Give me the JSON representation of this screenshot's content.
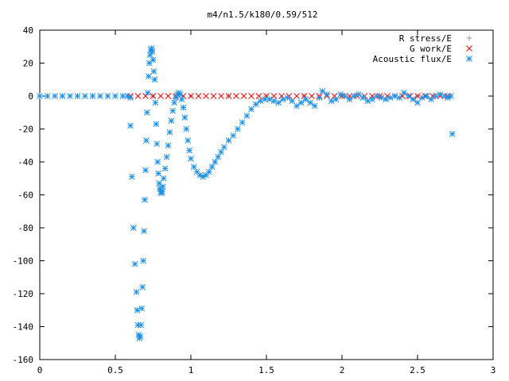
{
  "chart_data": {
    "type": "scatter",
    "title": "m4/n1.5/k180/0.59/512",
    "xlabel": "",
    "ylabel": "",
    "xlim": [
      0,
      3
    ],
    "ylim": [
      -160,
      40
    ],
    "xticks": [
      0,
      0.5,
      1,
      1.5,
      2,
      2.5,
      3
    ],
    "xtick_labels": [
      "0",
      "0.5",
      "1",
      "1.5",
      "2",
      "2.5",
      "3"
    ],
    "yticks": [
      -160,
      -140,
      -120,
      -100,
      -80,
      -60,
      -40,
      -20,
      0,
      20,
      40
    ],
    "ytick_labels": [
      "-160",
      "-140",
      "-120",
      "-100",
      "-80",
      "-60",
      "-40",
      "-20",
      "0",
      "20",
      "40"
    ],
    "grid": false,
    "legend_position": "top-right",
    "series": [
      {
        "name": "R stress/E",
        "marker": "plus",
        "color": "#a0a0a0",
        "points": [
          [
            0.0,
            0
          ],
          [
            0.25,
            0
          ],
          [
            0.5,
            0
          ],
          [
            0.75,
            0
          ],
          [
            1.0,
            0
          ],
          [
            1.25,
            0
          ],
          [
            1.5,
            0
          ],
          [
            1.75,
            0
          ],
          [
            2.0,
            0
          ],
          [
            2.25,
            0
          ],
          [
            2.5,
            0
          ],
          [
            2.72,
            0
          ]
        ]
      },
      {
        "name": "G work/E",
        "marker": "cross",
        "color": "#ff0000",
        "points": [
          [
            0.6,
            0
          ],
          [
            0.65,
            0
          ],
          [
            0.7,
            0
          ],
          [
            0.75,
            0
          ],
          [
            0.8,
            0
          ],
          [
            0.85,
            0
          ],
          [
            0.9,
            0
          ],
          [
            0.95,
            0
          ],
          [
            1.0,
            0
          ],
          [
            1.05,
            0
          ],
          [
            1.1,
            0
          ],
          [
            1.15,
            0
          ],
          [
            1.2,
            0
          ],
          [
            1.25,
            0
          ],
          [
            1.3,
            0
          ],
          [
            1.35,
            0
          ],
          [
            1.4,
            0
          ],
          [
            1.45,
            0
          ],
          [
            1.5,
            0
          ],
          [
            1.55,
            0
          ],
          [
            1.6,
            0
          ],
          [
            1.65,
            0
          ],
          [
            1.7,
            0
          ],
          [
            1.75,
            0
          ],
          [
            1.8,
            0
          ],
          [
            1.85,
            0
          ],
          [
            1.9,
            0
          ],
          [
            1.95,
            0
          ],
          [
            2.0,
            0
          ],
          [
            2.05,
            0
          ],
          [
            2.1,
            0
          ],
          [
            2.15,
            0
          ],
          [
            2.2,
            0
          ],
          [
            2.25,
            0
          ],
          [
            2.3,
            0
          ],
          [
            2.35,
            0
          ],
          [
            2.4,
            0
          ],
          [
            2.45,
            0
          ],
          [
            2.5,
            0
          ],
          [
            2.55,
            0
          ],
          [
            2.6,
            0
          ],
          [
            2.65,
            0
          ],
          [
            2.7,
            0
          ]
        ]
      },
      {
        "name": "Acoustic flux/E",
        "marker": "star",
        "color": "#1e90e6",
        "points": [
          [
            0.0,
            0
          ],
          [
            0.05,
            0
          ],
          [
            0.1,
            0
          ],
          [
            0.15,
            0
          ],
          [
            0.2,
            0
          ],
          [
            0.25,
            0
          ],
          [
            0.3,
            0
          ],
          [
            0.35,
            0
          ],
          [
            0.4,
            0
          ],
          [
            0.45,
            0
          ],
          [
            0.5,
            0
          ],
          [
            0.55,
            0
          ],
          [
            0.58,
            0
          ],
          [
            0.6,
            -1
          ],
          [
            0.6,
            -18
          ],
          [
            0.61,
            -49
          ],
          [
            0.62,
            -80
          ],
          [
            0.63,
            -102
          ],
          [
            0.64,
            -119
          ],
          [
            0.645,
            -130
          ],
          [
            0.65,
            -139
          ],
          [
            0.655,
            -145
          ],
          [
            0.66,
            -147
          ],
          [
            0.665,
            -146
          ],
          [
            0.67,
            -139
          ],
          [
            0.675,
            -129
          ],
          [
            0.68,
            -116
          ],
          [
            0.685,
            -100
          ],
          [
            0.69,
            -82
          ],
          [
            0.695,
            -63
          ],
          [
            0.7,
            -45
          ],
          [
            0.705,
            -27
          ],
          [
            0.71,
            -10
          ],
          [
            0.715,
            2
          ],
          [
            0.72,
            12
          ],
          [
            0.725,
            20
          ],
          [
            0.73,
            25
          ],
          [
            0.735,
            28
          ],
          [
            0.74,
            29
          ],
          [
            0.745,
            27
          ],
          [
            0.75,
            22
          ],
          [
            0.755,
            15
          ],
          [
            0.76,
            10
          ],
          [
            0.765,
            -4
          ],
          [
            0.77,
            -17
          ],
          [
            0.775,
            -29
          ],
          [
            0.78,
            -40
          ],
          [
            0.785,
            -47
          ],
          [
            0.79,
            -53
          ],
          [
            0.795,
            -56
          ],
          [
            0.8,
            -58
          ],
          [
            0.805,
            -59
          ],
          [
            0.81,
            -58
          ],
          [
            0.815,
            -55
          ],
          [
            0.82,
            -50
          ],
          [
            0.83,
            -44
          ],
          [
            0.84,
            -37
          ],
          [
            0.85,
            -30
          ],
          [
            0.86,
            -22
          ],
          [
            0.87,
            -15
          ],
          [
            0.88,
            -9
          ],
          [
            0.89,
            -4
          ],
          [
            0.9,
            -1
          ],
          [
            0.91,
            1
          ],
          [
            0.92,
            2
          ],
          [
            0.93,
            1
          ],
          [
            0.94,
            -2
          ],
          [
            0.95,
            -7
          ],
          [
            0.96,
            -13
          ],
          [
            0.97,
            -20
          ],
          [
            0.98,
            -27
          ],
          [
            0.99,
            -33
          ],
          [
            1.0,
            -38
          ],
          [
            1.02,
            -43
          ],
          [
            1.04,
            -46
          ],
          [
            1.06,
            -48
          ],
          [
            1.08,
            -49
          ],
          [
            1.1,
            -48
          ],
          [
            1.12,
            -46
          ],
          [
            1.14,
            -43
          ],
          [
            1.16,
            -40
          ],
          [
            1.18,
            -37
          ],
          [
            1.2,
            -34
          ],
          [
            1.22,
            -31
          ],
          [
            1.25,
            -27
          ],
          [
            1.28,
            -24
          ],
          [
            1.31,
            -20
          ],
          [
            1.34,
            -16
          ],
          [
            1.37,
            -12
          ],
          [
            1.4,
            -8
          ],
          [
            1.43,
            -5
          ],
          [
            1.46,
            -3
          ],
          [
            1.49,
            -2
          ],
          [
            1.52,
            -2
          ],
          [
            1.55,
            -3
          ],
          [
            1.58,
            -4
          ],
          [
            1.61,
            -2
          ],
          [
            1.64,
            -1
          ],
          [
            1.67,
            -3
          ],
          [
            1.7,
            -6
          ],
          [
            1.73,
            -4
          ],
          [
            1.76,
            -2
          ],
          [
            1.79,
            -4
          ],
          [
            1.82,
            -6
          ],
          [
            1.85,
            -1
          ],
          [
            1.87,
            3
          ],
          [
            1.9,
            1
          ],
          [
            1.93,
            -3
          ],
          [
            1.96,
            -2
          ],
          [
            1.99,
            1
          ],
          [
            2.02,
            0
          ],
          [
            2.05,
            -2
          ],
          [
            2.08,
            0
          ],
          [
            2.11,
            1
          ],
          [
            2.14,
            -1
          ],
          [
            2.17,
            -3
          ],
          [
            2.2,
            -2
          ],
          [
            2.23,
            0
          ],
          [
            2.26,
            -1
          ],
          [
            2.29,
            -2
          ],
          [
            2.32,
            -1
          ],
          [
            2.35,
            0
          ],
          [
            2.38,
            -1
          ],
          [
            2.41,
            2
          ],
          [
            2.44,
            0
          ],
          [
            2.47,
            -2
          ],
          [
            2.5,
            -4
          ],
          [
            2.53,
            -1
          ],
          [
            2.56,
            0
          ],
          [
            2.59,
            -2
          ],
          [
            2.62,
            0
          ],
          [
            2.65,
            1
          ],
          [
            2.68,
            0
          ],
          [
            2.7,
            -1
          ],
          [
            2.72,
            0
          ],
          [
            2.73,
            -23
          ]
        ]
      }
    ]
  }
}
